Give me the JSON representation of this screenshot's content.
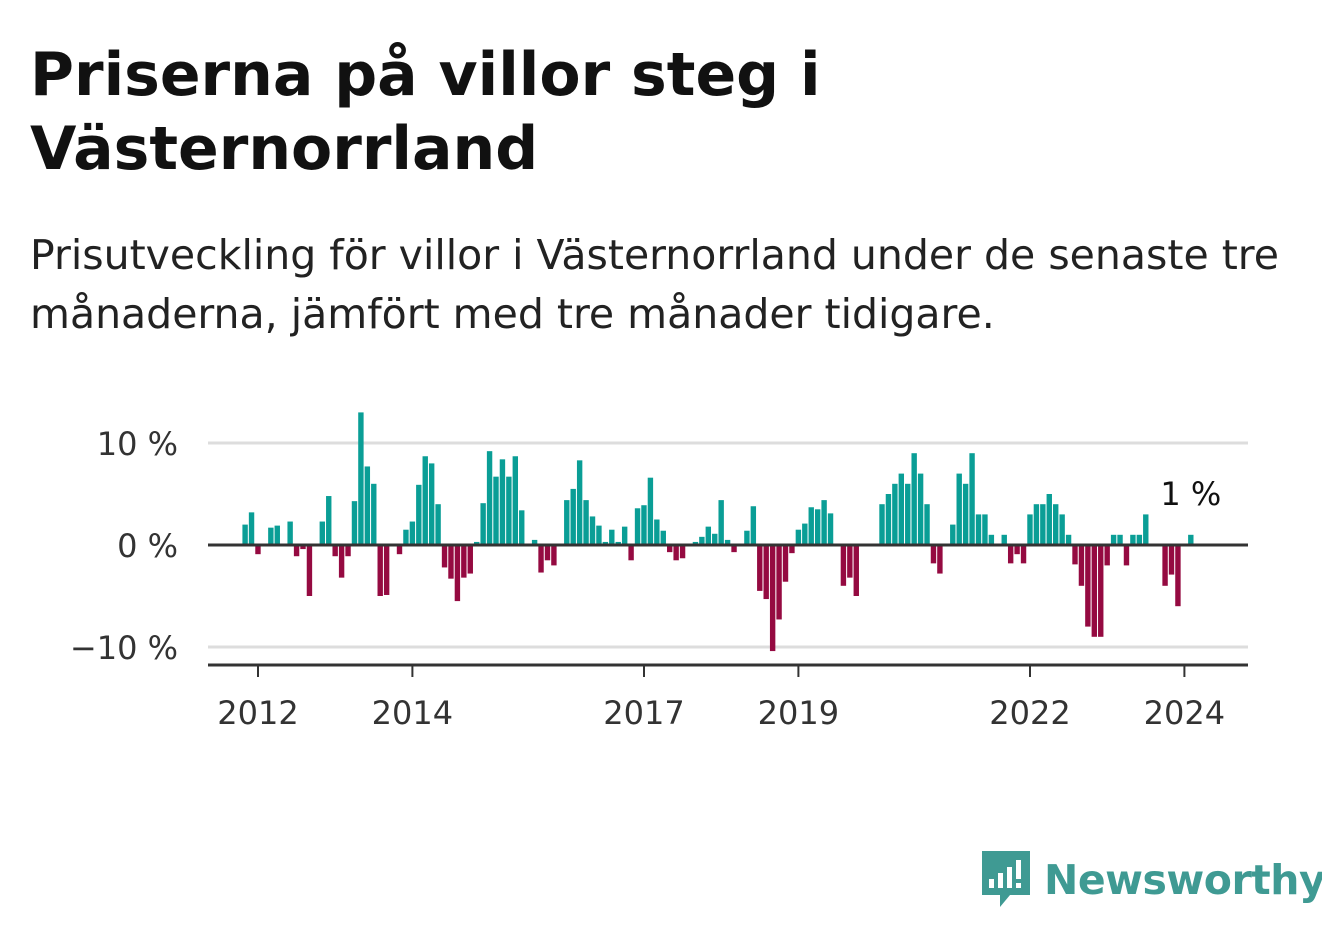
{
  "title": "Priserna på villor steg i Västernorrland",
  "subtitle": "Prisutveckling för villor i Västernorrland under de senaste tre månaderna, jämfört med tre månader tidigare.",
  "brand": {
    "name": "Newsworthy",
    "color": "#3f9a93",
    "icon": "newsworthy-chart-icon"
  },
  "colors": {
    "positive": "#0a9e96",
    "negative": "#950a41",
    "axis": "#333333",
    "grid": "#dddddd"
  },
  "chart_data": {
    "type": "bar",
    "start_year": 2011.833,
    "ylim": [
      -11,
      13
    ],
    "yticks": [
      {
        "value": 10,
        "label": "10 %"
      },
      {
        "value": 0,
        "label": "0 %"
      },
      {
        "value": -10,
        "label": "−10 %"
      }
    ],
    "xticks": [
      {
        "value": 2012,
        "label": "2012"
      },
      {
        "value": 2014,
        "label": "2014"
      },
      {
        "value": 2017,
        "label": "2017"
      },
      {
        "value": 2019,
        "label": "2019"
      },
      {
        "value": 2022,
        "label": "2022"
      },
      {
        "value": 2024,
        "label": "2024"
      }
    ],
    "grid": true,
    "last_value_label": "1 %",
    "values": [
      2.0,
      3.2,
      -0.9,
      0,
      1.7,
      1.9,
      0,
      2.3,
      -1.1,
      -0.4,
      -5.0,
      0,
      2.3,
      4.8,
      -1.1,
      -3.2,
      -1.1,
      4.3,
      13.0,
      7.7,
      6.0,
      -5.0,
      -4.9,
      0,
      -0.9,
      1.5,
      2.3,
      5.9,
      8.7,
      8.0,
      4.0,
      -2.2,
      -3.3,
      -5.5,
      -3.2,
      -2.8,
      0.3,
      4.1,
      9.2,
      6.7,
      8.4,
      6.7,
      8.7,
      3.4,
      0,
      0.5,
      -2.7,
      -1.5,
      -2.0,
      0,
      4.4,
      5.5,
      8.3,
      4.4,
      2.8,
      1.9,
      0.3,
      1.5,
      0.3,
      1.8,
      -1.5,
      3.6,
      3.9,
      6.6,
      2.5,
      1.4,
      -0.7,
      -1.5,
      -1.3,
      0,
      0.3,
      0.8,
      1.8,
      1.1,
      4.4,
      0.5,
      -0.7,
      0,
      1.4,
      3.8,
      -4.5,
      -5.3,
      -10.4,
      -7.3,
      -3.6,
      -0.8,
      1.5,
      2.1,
      3.7,
      3.5,
      4.4,
      3.1,
      0,
      -4.0,
      -3.2,
      -5.0,
      0,
      0,
      0,
      4.0,
      5.0,
      6.0,
      7.0,
      6.0,
      9.0,
      7.0,
      4.0,
      -1.8,
      -2.8,
      0,
      2.0,
      7.0,
      6.0,
      9.0,
      3.0,
      3.0,
      1.0,
      0,
      1.0,
      -1.8,
      -0.9,
      -1.8,
      3.0,
      4.0,
      4.0,
      5.0,
      4.0,
      3.0,
      1.0,
      -1.9,
      -4.0,
      -8.0,
      -9.0,
      -9.0,
      -2.0,
      1.0,
      1.0,
      -2.0,
      1.0,
      1.0,
      3.0,
      0,
      0,
      -4.0,
      -2.9,
      -6.0,
      0,
      1.0
    ]
  }
}
